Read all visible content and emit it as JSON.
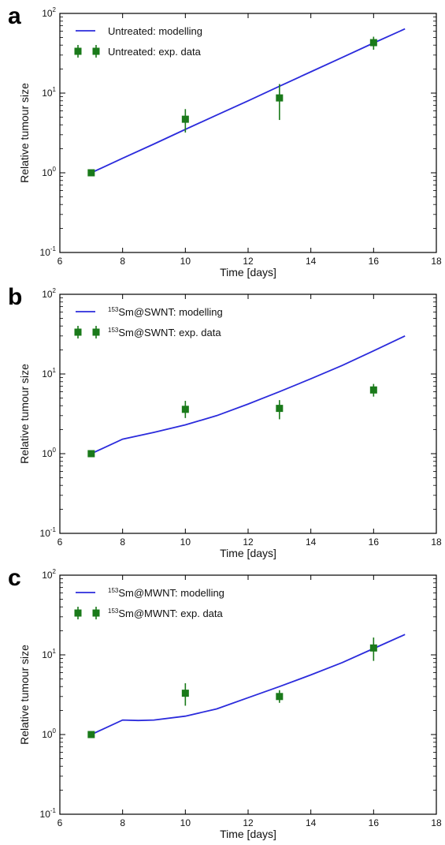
{
  "chart_data": [
    {
      "panel": "a",
      "type": "line",
      "xlabel": "Time [days]",
      "ylabel": "Relative tumour size",
      "xlim": [
        6,
        18
      ],
      "ylim": [
        0.1,
        100
      ],
      "yscale": "log",
      "xticks": [
        "6",
        "8",
        "10",
        "12",
        "14",
        "16",
        "18"
      ],
      "yticks": [
        {
          "base": "10",
          "exp": "-1"
        },
        {
          "base": "10",
          "exp": "0"
        },
        {
          "base": "10",
          "exp": "1"
        },
        {
          "base": "10",
          "exp": "2"
        }
      ],
      "legend_position": "top-left",
      "grid": false,
      "series": [
        {
          "name_pre": "",
          "name_sup": "",
          "name": "Untreated: modelling",
          "kind": "line",
          "color": "#2b2bdc",
          "x": [
            7,
            8,
            9,
            10,
            11,
            12,
            13,
            14,
            15,
            16,
            17
          ],
          "y": [
            1.0,
            1.52,
            2.3,
            3.5,
            5.3,
            8.0,
            12.2,
            18.5,
            28.0,
            42.5,
            64.0
          ]
        },
        {
          "name_pre": "",
          "name_sup": "",
          "name": "Untreated: exp. data",
          "kind": "errorbar",
          "color": "#1a7a1a",
          "x": [
            7,
            10,
            13,
            16
          ],
          "y": [
            1.0,
            4.7,
            8.7,
            43
          ],
          "ylow": [
            0.93,
            3.2,
            4.6,
            35
          ],
          "yhigh": [
            1.07,
            6.3,
            13,
            51
          ]
        }
      ]
    },
    {
      "panel": "b",
      "type": "line",
      "xlabel": "Time [days]",
      "ylabel": "Relative tumour size",
      "xlim": [
        6,
        18
      ],
      "ylim": [
        0.1,
        100
      ],
      "yscale": "log",
      "xticks": [
        "6",
        "8",
        "10",
        "12",
        "14",
        "16",
        "18"
      ],
      "yticks": [
        {
          "base": "10",
          "exp": "-1"
        },
        {
          "base": "10",
          "exp": "0"
        },
        {
          "base": "10",
          "exp": "1"
        },
        {
          "base": "10",
          "exp": "2"
        }
      ],
      "legend_position": "top-left",
      "grid": false,
      "series": [
        {
          "name_pre": "",
          "name_sup": "153",
          "name": "Sm@SWNT: modelling",
          "kind": "line",
          "color": "#2b2bdc",
          "x": [
            7,
            8,
            9,
            10,
            11,
            12,
            13,
            14,
            15,
            16,
            17
          ],
          "y": [
            1.0,
            1.52,
            1.85,
            2.3,
            3.0,
            4.2,
            6.0,
            8.7,
            12.8,
            19.5,
            30.0
          ]
        },
        {
          "name_pre": "",
          "name_sup": "153",
          "name": "Sm@SWNT: exp. data",
          "kind": "errorbar",
          "color": "#1a7a1a",
          "x": [
            7,
            10,
            13,
            16
          ],
          "y": [
            1.0,
            3.6,
            3.7,
            6.3
          ],
          "ylow": [
            0.93,
            2.8,
            2.7,
            5.2
          ],
          "yhigh": [
            1.07,
            4.6,
            4.7,
            7.5
          ]
        }
      ]
    },
    {
      "panel": "c",
      "type": "line",
      "xlabel": "Time [days]",
      "ylabel": "Relative tumour size",
      "xlim": [
        6,
        18
      ],
      "ylim": [
        0.1,
        100
      ],
      "yscale": "log",
      "xticks": [
        "6",
        "8",
        "10",
        "12",
        "14",
        "16",
        "18"
      ],
      "yticks": [
        {
          "base": "10",
          "exp": "-1"
        },
        {
          "base": "10",
          "exp": "0"
        },
        {
          "base": "10",
          "exp": "1"
        },
        {
          "base": "10",
          "exp": "2"
        }
      ],
      "legend_position": "top-left",
      "grid": false,
      "series": [
        {
          "name_pre": "",
          "name_sup": "153",
          "name": "Sm@MWNT: modelling",
          "kind": "line",
          "color": "#2b2bdc",
          "x": [
            7,
            8,
            8.5,
            9,
            10,
            11,
            12,
            13,
            14,
            15,
            16,
            17
          ],
          "y": [
            1.0,
            1.52,
            1.5,
            1.52,
            1.7,
            2.1,
            2.9,
            4.0,
            5.6,
            8.0,
            12.0,
            18.0
          ]
        },
        {
          "name_pre": "",
          "name_sup": "153",
          "name": "Sm@MWNT: exp. data",
          "kind": "errorbar",
          "color": "#1a7a1a",
          "x": [
            7,
            10,
            13,
            16
          ],
          "y": [
            1.0,
            3.3,
            3.0,
            12.2
          ],
          "ylow": [
            0.93,
            2.3,
            2.5,
            8.4
          ],
          "yhigh": [
            1.07,
            4.4,
            3.6,
            16.5
          ]
        }
      ]
    }
  ]
}
